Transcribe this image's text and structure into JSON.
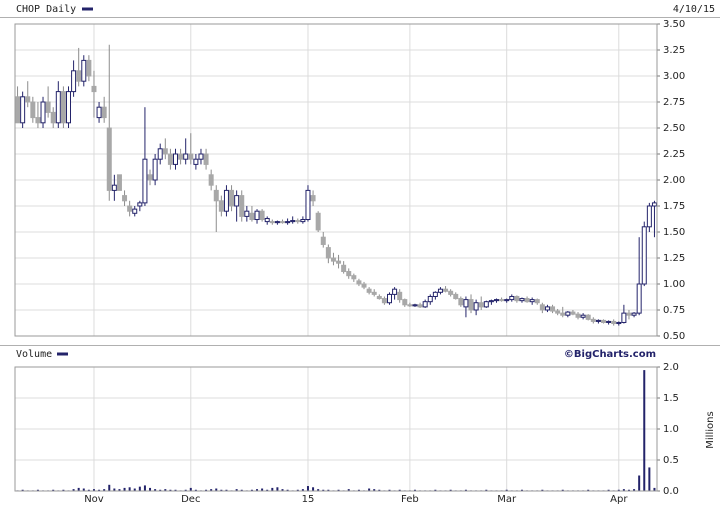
{
  "chart_data": [
    {
      "type": "candlestick",
      "title": "CHOP Daily",
      "date": "4/10/15",
      "open": [
        2.8,
        2.55,
        2.8,
        2.75,
        2.6,
        2.55,
        2.75,
        2.65,
        2.55,
        2.85,
        2.55,
        2.85,
        3.05,
        2.95,
        3.15,
        2.9,
        2.6,
        2.7,
        2.5,
        1.9,
        2.05,
        1.85,
        1.75,
        1.68,
        1.75,
        1.78,
        2.05,
        2.0,
        2.2,
        2.3,
        2.25,
        2.15,
        2.25,
        2.2,
        2.25,
        2.15,
        2.2,
        2.25,
        2.05,
        1.9,
        1.8,
        1.7,
        1.9,
        1.75,
        1.85,
        1.65,
        1.68,
        1.62,
        1.7,
        1.6,
        1.6,
        1.59,
        1.6,
        1.59,
        1.6,
        1.61,
        1.6,
        1.62,
        1.85,
        1.68,
        1.45,
        1.35,
        1.25,
        1.22,
        1.18,
        1.12,
        1.08,
        1.03,
        1.0,
        0.95,
        0.92,
        0.88,
        0.86,
        0.82,
        0.9,
        0.92,
        0.85,
        0.8,
        0.79,
        0.8,
        0.78,
        0.83,
        0.88,
        0.92,
        0.95,
        0.93,
        0.9,
        0.86,
        0.78,
        0.85,
        0.75,
        0.82,
        0.78,
        0.83,
        0.84,
        0.85,
        0.84,
        0.85,
        0.88,
        0.84,
        0.86,
        0.83,
        0.85,
        0.8,
        0.75,
        0.78,
        0.74,
        0.72,
        0.7,
        0.73,
        0.71,
        0.68,
        0.7,
        0.66,
        0.64,
        0.65,
        0.63,
        0.64,
        0.62,
        0.63,
        0.72,
        0.7,
        0.72,
        1.0,
        1.55,
        1.75
      ],
      "high": [
        2.9,
        2.85,
        2.95,
        2.8,
        2.75,
        2.8,
        2.9,
        2.7,
        2.95,
        2.9,
        2.9,
        3.15,
        3.27,
        3.2,
        3.2,
        3.05,
        2.75,
        2.8,
        3.3,
        2.05,
        2.05,
        1.9,
        1.8,
        1.75,
        1.8,
        2.7,
        2.1,
        2.25,
        2.35,
        2.4,
        2.3,
        2.3,
        2.3,
        2.4,
        2.45,
        2.25,
        2.3,
        2.3,
        2.1,
        1.95,
        1.85,
        1.95,
        1.95,
        1.9,
        1.9,
        1.75,
        1.75,
        1.72,
        1.72,
        1.65,
        1.62,
        1.61,
        1.62,
        1.63,
        1.65,
        1.63,
        1.65,
        1.95,
        1.9,
        1.7,
        1.5,
        1.38,
        1.3,
        1.28,
        1.22,
        1.15,
        1.1,
        1.05,
        1.02,
        0.97,
        0.95,
        0.9,
        0.88,
        0.92,
        0.97,
        0.95,
        0.86,
        0.82,
        0.81,
        0.82,
        0.85,
        0.9,
        0.93,
        0.97,
        0.98,
        0.95,
        0.92,
        0.88,
        0.88,
        0.9,
        0.85,
        0.88,
        0.84,
        0.85,
        0.86,
        0.87,
        0.86,
        0.9,
        0.89,
        0.87,
        0.88,
        0.87,
        0.86,
        0.82,
        0.8,
        0.8,
        0.76,
        0.78,
        0.74,
        0.75,
        0.73,
        0.72,
        0.71,
        0.68,
        0.66,
        0.66,
        0.65,
        0.66,
        0.64,
        0.8,
        0.75,
        0.73,
        1.45,
        1.6,
        1.78,
        1.8
      ],
      "low": [
        2.55,
        2.5,
        2.7,
        2.55,
        2.5,
        2.5,
        2.6,
        2.5,
        2.5,
        2.5,
        2.5,
        2.8,
        2.9,
        2.9,
        2.95,
        2.6,
        2.55,
        2.55,
        1.8,
        1.8,
        1.9,
        1.75,
        1.65,
        1.65,
        1.7,
        1.75,
        1.95,
        1.95,
        2.15,
        2.2,
        2.1,
        2.1,
        2.15,
        2.15,
        2.15,
        2.1,
        2.15,
        2.1,
        1.9,
        1.5,
        1.65,
        1.65,
        1.7,
        1.6,
        1.6,
        1.6,
        1.6,
        1.58,
        1.6,
        1.57,
        1.57,
        1.57,
        1.58,
        1.57,
        1.58,
        1.58,
        1.58,
        1.6,
        1.75,
        1.5,
        1.35,
        1.2,
        1.18,
        1.15,
        1.1,
        1.05,
        1.02,
        0.98,
        0.95,
        0.9,
        0.88,
        0.85,
        0.8,
        0.8,
        0.85,
        0.82,
        0.78,
        0.78,
        0.78,
        0.77,
        0.77,
        0.8,
        0.85,
        0.9,
        0.92,
        0.88,
        0.85,
        0.78,
        0.68,
        0.72,
        0.7,
        0.75,
        0.77,
        0.8,
        0.82,
        0.83,
        0.82,
        0.83,
        0.82,
        0.82,
        0.82,
        0.8,
        0.8,
        0.72,
        0.73,
        0.72,
        0.7,
        0.68,
        0.68,
        0.7,
        0.66,
        0.66,
        0.65,
        0.62,
        0.62,
        0.62,
        0.61,
        0.6,
        0.6,
        0.62,
        0.66,
        0.68,
        0.7,
        0.98,
        1.5,
        1.45
      ],
      "close": [
        2.55,
        2.8,
        2.75,
        2.6,
        2.55,
        2.75,
        2.65,
        2.55,
        2.85,
        2.55,
        2.85,
        3.05,
        2.95,
        3.15,
        3.0,
        2.85,
        2.7,
        2.6,
        1.9,
        1.95,
        1.9,
        1.8,
        1.7,
        1.72,
        1.78,
        2.2,
        2.0,
        2.2,
        2.3,
        2.25,
        2.15,
        2.25,
        2.2,
        2.25,
        2.2,
        2.2,
        2.25,
        2.15,
        1.95,
        1.8,
        1.7,
        1.9,
        1.75,
        1.85,
        1.65,
        1.7,
        1.62,
        1.7,
        1.62,
        1.63,
        1.59,
        1.6,
        1.59,
        1.6,
        1.61,
        1.6,
        1.62,
        1.9,
        1.8,
        1.52,
        1.38,
        1.25,
        1.22,
        1.2,
        1.12,
        1.08,
        1.05,
        1.0,
        0.97,
        0.92,
        0.9,
        0.86,
        0.82,
        0.9,
        0.95,
        0.85,
        0.8,
        0.79,
        0.8,
        0.78,
        0.83,
        0.88,
        0.92,
        0.95,
        0.93,
        0.9,
        0.86,
        0.8,
        0.85,
        0.75,
        0.82,
        0.78,
        0.83,
        0.84,
        0.85,
        0.84,
        0.85,
        0.88,
        0.84,
        0.86,
        0.83,
        0.85,
        0.82,
        0.75,
        0.78,
        0.74,
        0.72,
        0.7,
        0.73,
        0.71,
        0.68,
        0.7,
        0.66,
        0.64,
        0.65,
        0.63,
        0.64,
        0.62,
        0.63,
        0.72,
        0.7,
        0.72,
        1.0,
        1.55,
        1.75,
        1.78
      ],
      "up_color": "#ffffff",
      "down_color": "#a8a8a8",
      "edge_color": "#23236a",
      "ylim": [
        0.5,
        3.5
      ],
      "yticks": [
        {
          "value": 0.5,
          "label": "0.50"
        },
        0.75,
        {
          "value": 1,
          "label": "1.00"
        },
        1.25,
        {
          "value": 1.5,
          "label": "1.50"
        },
        1.75,
        {
          "value": 2,
          "label": "2.00"
        },
        2.25,
        {
          "value": 2.5,
          "label": "2.50"
        },
        2.75,
        {
          "value": 3,
          "label": "3.00"
        },
        3.25,
        {
          "value": 3.5,
          "label": "3.50"
        }
      ],
      "grid": true
    },
    {
      "type": "bar",
      "title": "Volume",
      "source": "©BigCharts.com",
      "y_label": "Millions",
      "categories": [
        null,
        null,
        null,
        null,
        null,
        null,
        null,
        null,
        null,
        null,
        null,
        null,
        null,
        null,
        null,
        "Nov",
        null,
        null,
        null,
        null,
        null,
        null,
        null,
        null,
        null,
        null,
        null,
        null,
        null,
        null,
        null,
        null,
        null,
        null,
        "Dec",
        null,
        null,
        null,
        null,
        null,
        null,
        null,
        null,
        null,
        null,
        null,
        null,
        null,
        null,
        null,
        null,
        null,
        null,
        null,
        null,
        null,
        null,
        "15",
        null,
        null,
        null,
        null,
        null,
        null,
        null,
        null,
        null,
        null,
        null,
        null,
        null,
        null,
        null,
        null,
        null,
        null,
        null,
        "Feb",
        null,
        null,
        null,
        null,
        null,
        null,
        null,
        null,
        null,
        null,
        null,
        null,
        null,
        null,
        null,
        null,
        null,
        null,
        "Mar",
        null,
        null,
        null,
        null,
        null,
        null,
        null,
        null,
        null,
        null,
        null,
        null,
        null,
        null,
        null,
        null,
        null,
        null,
        null,
        null,
        null,
        "Apr",
        null,
        null,
        null,
        null,
        null,
        null,
        null
      ],
      "values": [
        0.01,
        0.02,
        0.01,
        0.01,
        0.02,
        0.01,
        0.01,
        0.02,
        0.01,
        0.02,
        0.01,
        0.03,
        0.05,
        0.04,
        0.02,
        0.03,
        0.02,
        0.03,
        0.1,
        0.04,
        0.03,
        0.05,
        0.06,
        0.04,
        0.07,
        0.09,
        0.05,
        0.03,
        0.02,
        0.03,
        0.02,
        0.02,
        0.01,
        0.02,
        0.05,
        0.02,
        0.01,
        0.02,
        0.03,
        0.04,
        0.02,
        0.02,
        0.01,
        0.03,
        0.02,
        0.01,
        0.02,
        0.03,
        0.04,
        0.02,
        0.05,
        0.06,
        0.03,
        0.02,
        0.01,
        0.02,
        0.03,
        0.08,
        0.06,
        0.03,
        0.02,
        0.02,
        0.01,
        0.02,
        0.01,
        0.03,
        0.01,
        0.02,
        0.01,
        0.04,
        0.03,
        0.02,
        0.01,
        0.02,
        0.01,
        0.02,
        0.01,
        0.01,
        0.02,
        0.01,
        0.01,
        0.01,
        0.02,
        0.01,
        0.01,
        0.02,
        0.01,
        0.01,
        0.02,
        0.01,
        0.01,
        0.01,
        0.02,
        0.01,
        0.01,
        0.01,
        0.02,
        0.01,
        0.01,
        0.02,
        0.01,
        0.01,
        0.01,
        0.02,
        0.01,
        0.01,
        0.01,
        0.02,
        0.01,
        0.01,
        0.01,
        0.01,
        0.02,
        0.01,
        0.01,
        0.01,
        0.02,
        0.01,
        0.02,
        0.03,
        0.02,
        0.03,
        0.25,
        1.95,
        0.38,
        0.05
      ],
      "color": "#23236a",
      "ylim": [
        0,
        2
      ],
      "yticks": [
        {
          "value": 0,
          "label": "0.0"
        },
        0.5,
        {
          "value": 1,
          "label": "1.0"
        },
        1.5,
        {
          "value": 2,
          "label": "2.0"
        }
      ],
      "grid": true
    }
  ]
}
